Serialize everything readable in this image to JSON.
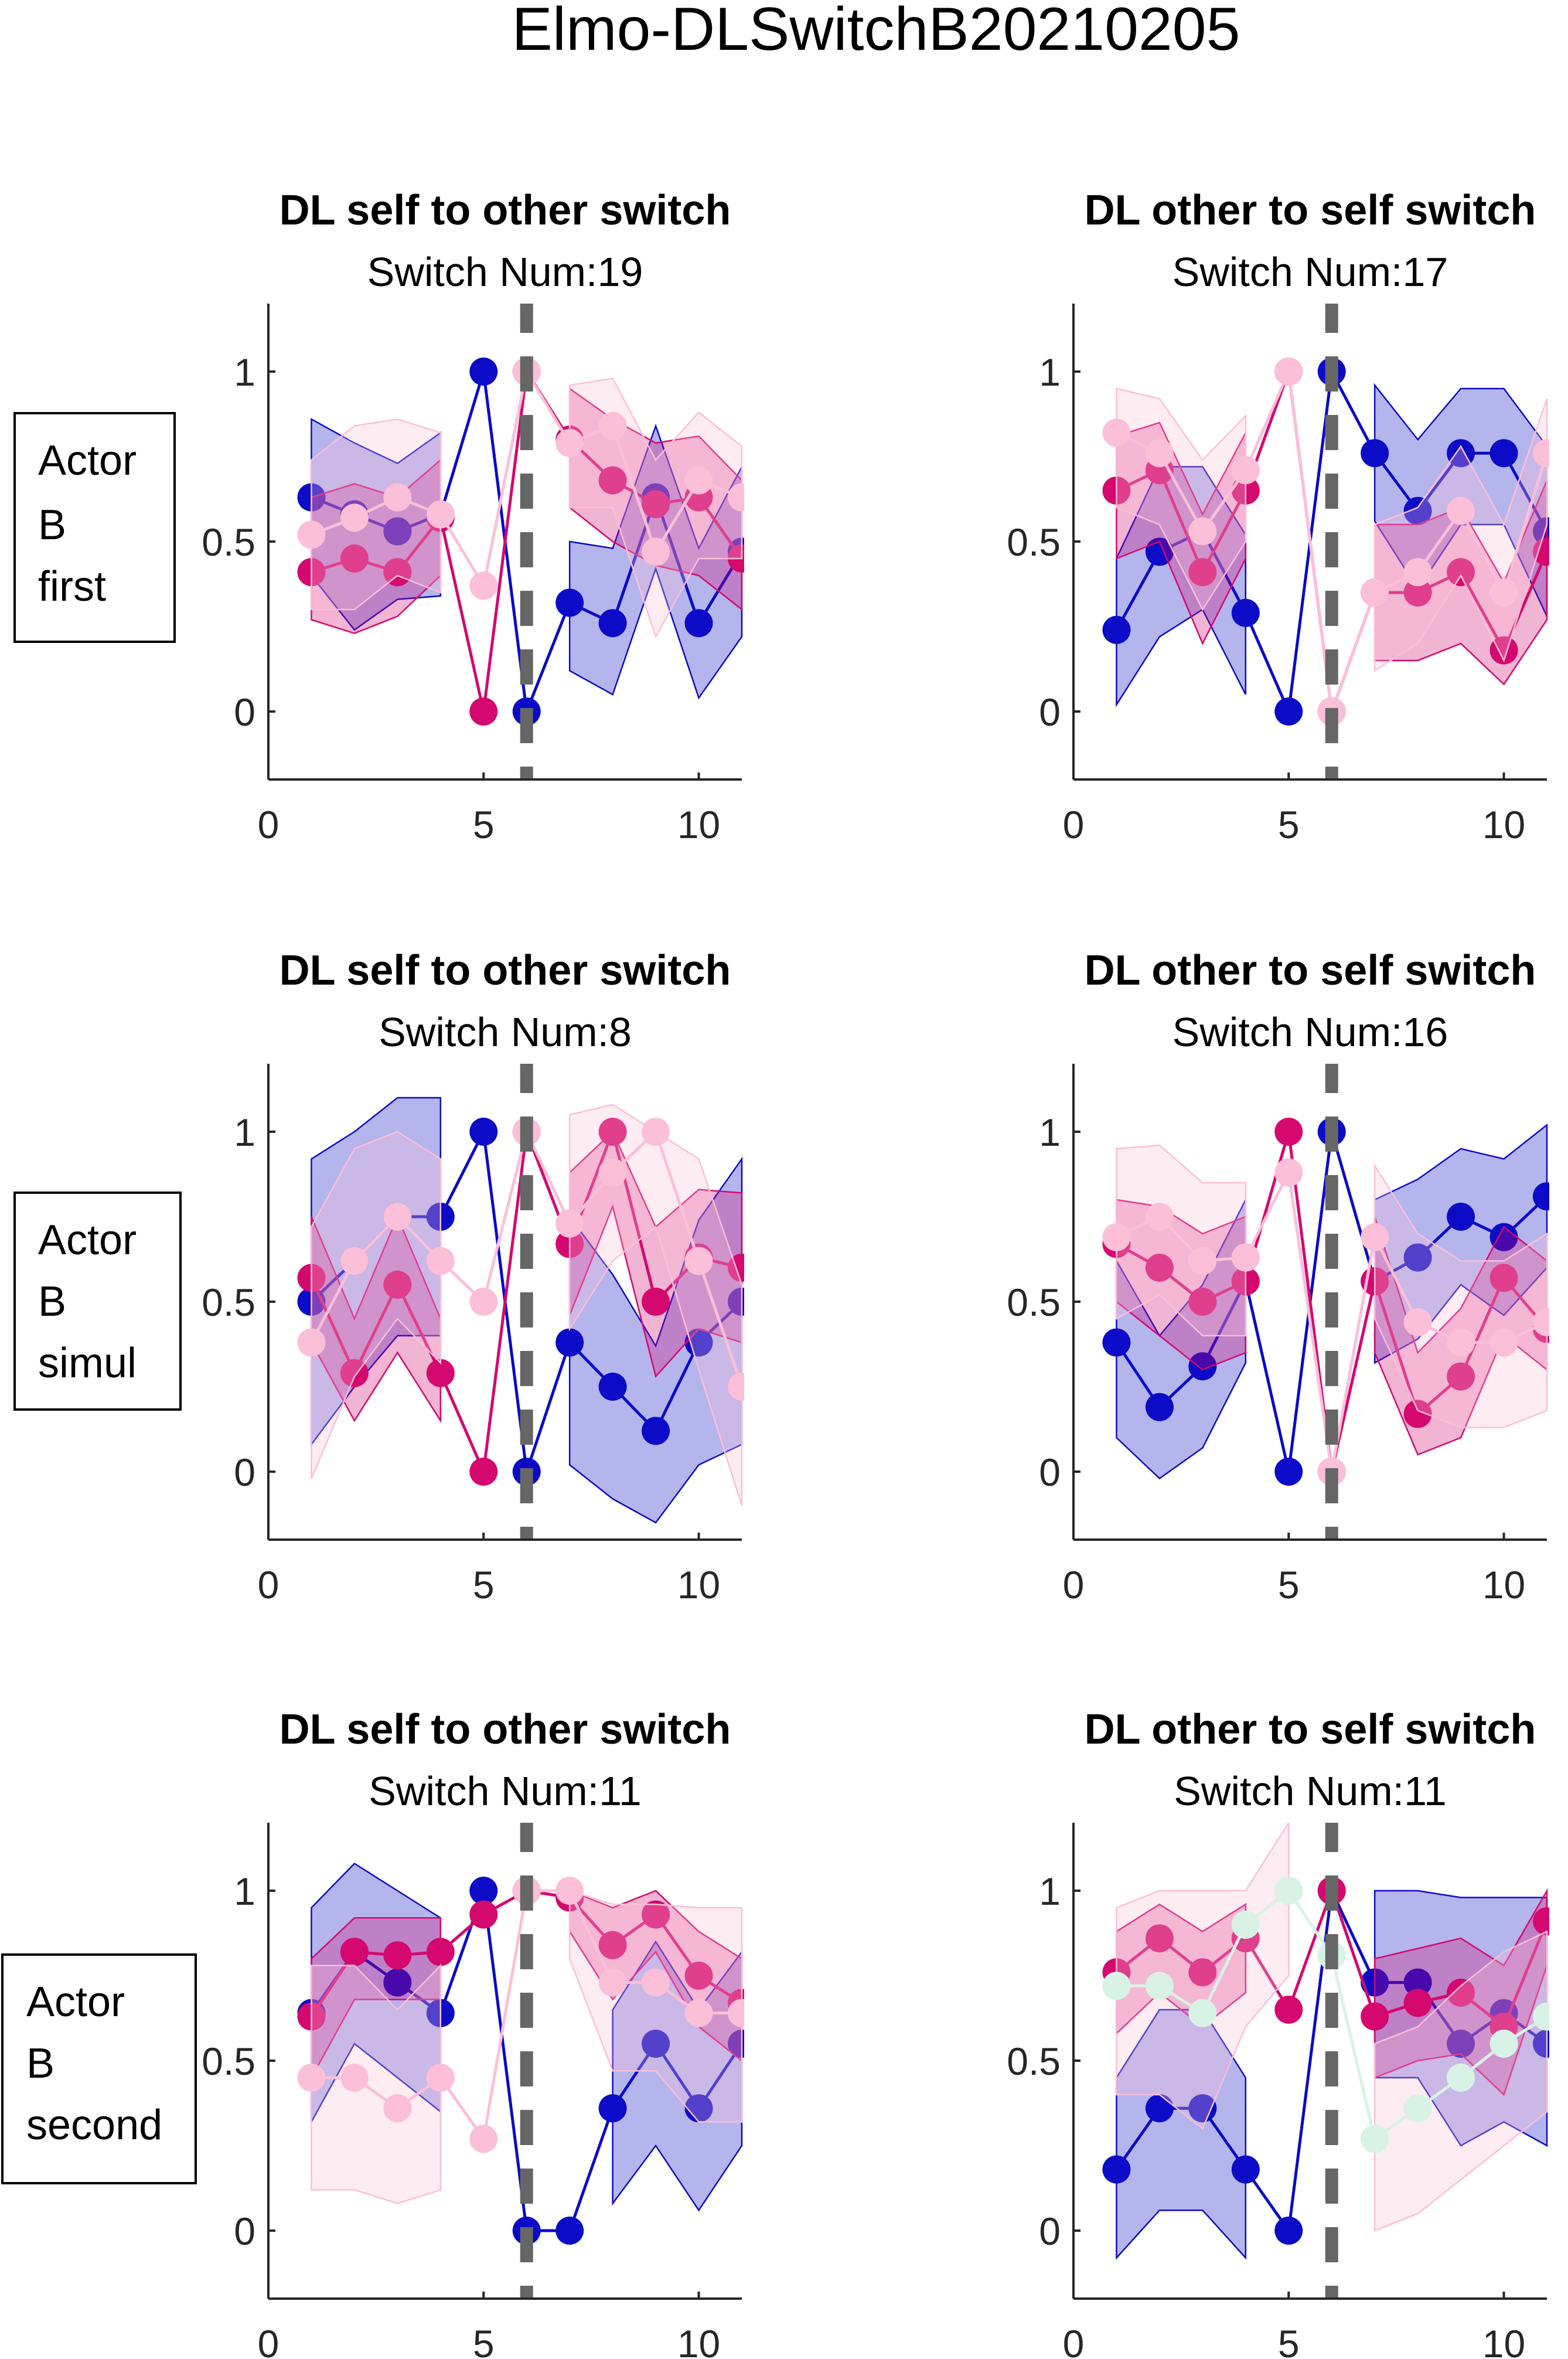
{
  "figure_title": "Elmo-DLSwitchB20210205",
  "row_labels": [
    [
      "Actor",
      "B",
      "first"
    ],
    [
      "Actor",
      "B",
      "simul"
    ],
    [
      "Actor",
      "B",
      "second"
    ]
  ],
  "chart_data": [
    {
      "type": "line",
      "title": "DL self to other switch",
      "subtitle": "Switch Num:19",
      "xlim": [
        0,
        11
      ],
      "ylim": [
        -0.2,
        1.2
      ],
      "xticks": [
        0,
        5,
        10
      ],
      "yticks": [
        0,
        0.5,
        1
      ],
      "xticklabels": [
        "0",
        "5",
        "10"
      ],
      "yticklabels": [
        "0",
        "0.5",
        "1"
      ],
      "switch_x": 6,
      "x": [
        1,
        2,
        3,
        4,
        5,
        6,
        7,
        8,
        9,
        10,
        11
      ],
      "series": [
        {
          "color": "#0b0bc8",
          "values": [
            0.63,
            0.58,
            0.53,
            0.58,
            1,
            0,
            0.32,
            0.26,
            0.63,
            0.26,
            0.47
          ],
          "upper": [
            0.86,
            0.79,
            0.73,
            0.82,
            null,
            null,
            0.5,
            0.48,
            0.84,
            0.48,
            0.72
          ],
          "lower": [
            0.4,
            0.24,
            0.33,
            0.34,
            null,
            null,
            0.12,
            0.05,
            0.42,
            0.04,
            0.22
          ]
        },
        {
          "color": "#d4086e",
          "values": [
            0.41,
            0.45,
            0.41,
            0.57,
            0,
            1,
            0.8,
            0.68,
            0.61,
            0.63,
            0.45
          ],
          "upper": [
            0.63,
            0.67,
            0.63,
            0.74,
            null,
            null,
            0.95,
            0.86,
            0.79,
            0.81,
            0.68
          ],
          "lower": [
            0.27,
            0.23,
            0.28,
            0.4,
            null,
            null,
            0.6,
            0.5,
            0.43,
            0.4,
            0.3
          ]
        },
        {
          "color": "#fbbfd8",
          "values": [
            0.52,
            0.57,
            0.63,
            0.58,
            0.37,
            1,
            0.79,
            0.84,
            0.47,
            0.68,
            0.63
          ],
          "upper": [
            0.74,
            0.84,
            0.86,
            0.82,
            null,
            null,
            0.96,
            0.98,
            0.74,
            0.88,
            0.78
          ],
          "lower": [
            0.3,
            0.3,
            0.4,
            0.35,
            null,
            null,
            0.6,
            0.6,
            0.22,
            0.45,
            0.45
          ]
        }
      ]
    },
    {
      "type": "line",
      "title": "DL other to self switch",
      "subtitle": "Switch Num:17",
      "xlim": [
        0,
        11
      ],
      "ylim": [
        -0.2,
        1.2
      ],
      "xticks": [
        0,
        5,
        10
      ],
      "yticks": [
        0,
        0.5,
        1
      ],
      "xticklabels": [
        "0",
        "5",
        "10"
      ],
      "yticklabels": [
        "0",
        "0.5",
        "1"
      ],
      "switch_x": 6,
      "x": [
        1,
        2,
        3,
        4,
        5,
        6,
        7,
        8,
        9,
        10,
        11
      ],
      "series": [
        {
          "color": "#0b0bc8",
          "values": [
            0.24,
            0.47,
            0.53,
            0.29,
            0,
            1,
            0.76,
            0.59,
            0.76,
            0.76,
            0.53
          ],
          "upper": [
            0.45,
            0.72,
            0.72,
            0.52,
            null,
            null,
            0.96,
            0.8,
            0.95,
            0.95,
            0.78
          ],
          "lower": [
            0.02,
            0.22,
            0.3,
            0.05,
            null,
            null,
            0.56,
            0.36,
            0.55,
            0.55,
            0.28
          ]
        },
        {
          "color": "#d4086e",
          "values": [
            0.65,
            0.71,
            0.41,
            0.65,
            1,
            0,
            0.35,
            0.35,
            0.41,
            0.18,
            0.47
          ],
          "upper": [
            0.81,
            0.85,
            0.58,
            0.82,
            null,
            null,
            0.55,
            0.55,
            0.6,
            0.38,
            0.68
          ],
          "lower": [
            0.45,
            0.5,
            0.2,
            0.45,
            null,
            null,
            0.15,
            0.15,
            0.2,
            0.08,
            0.27
          ]
        },
        {
          "color": "#fbbfd8",
          "values": [
            0.82,
            0.76,
            0.53,
            0.71,
            1,
            0,
            0.35,
            0.41,
            0.59,
            0.35,
            0.76
          ],
          "upper": [
            0.95,
            0.92,
            0.74,
            0.87,
            null,
            null,
            0.55,
            0.6,
            0.78,
            0.55,
            0.92
          ],
          "lower": [
            0.6,
            0.55,
            0.3,
            0.5,
            null,
            null,
            0.12,
            0.2,
            0.4,
            0.15,
            0.55
          ]
        }
      ]
    },
    {
      "type": "line",
      "title": "DL self to other switch",
      "subtitle": "Switch Num:8",
      "xlim": [
        0,
        11
      ],
      "ylim": [
        -0.2,
        1.2
      ],
      "xticks": [
        0,
        5,
        10
      ],
      "yticks": [
        0,
        0.5,
        1
      ],
      "xticklabels": [
        "0",
        "5",
        "10"
      ],
      "yticklabels": [
        "0",
        "0.5",
        "1"
      ],
      "switch_x": 6,
      "x": [
        1,
        2,
        3,
        4,
        5,
        6,
        7,
        8,
        9,
        10,
        11
      ],
      "series": [
        {
          "color": "#0b0bc8",
          "values": [
            0.5,
            0.62,
            0.75,
            0.75,
            1,
            0,
            0.38,
            0.25,
            0.12,
            0.38,
            0.5
          ],
          "upper": [
            0.92,
            1.0,
            1.1,
            1.1,
            null,
            null,
            0.75,
            0.58,
            0.37,
            0.74,
            0.92
          ],
          "lower": [
            0.08,
            0.25,
            0.4,
            0.4,
            null,
            null,
            0.02,
            -0.08,
            -0.15,
            0.02,
            0.08
          ]
        },
        {
          "color": "#d4086e",
          "values": [
            0.57,
            0.29,
            0.55,
            0.29,
            0,
            1,
            0.67,
            1,
            0.5,
            0.63,
            0.6
          ],
          "upper": [
            0.75,
            0.45,
            0.75,
            0.45,
            null,
            null,
            0.88,
            1.0,
            0.72,
            0.83,
            0.82
          ],
          "lower": [
            0.38,
            0.15,
            0.35,
            0.15,
            null,
            null,
            0.46,
            0.78,
            0.28,
            0.42,
            0.38
          ]
        },
        {
          "color": "#fbbfd8",
          "values": [
            0.38,
            0.62,
            0.75,
            0.62,
            0.5,
            1,
            0.73,
            0.88,
            1,
            0.62,
            0.25
          ],
          "upper": [
            0.72,
            0.95,
            1.0,
            0.92,
            null,
            null,
            1.05,
            1.08,
            1.0,
            0.92,
            0.55
          ],
          "lower": [
            -0.02,
            0.28,
            0.45,
            0.32,
            null,
            null,
            0.42,
            0.62,
            0.72,
            0.3,
            -0.1
          ]
        }
      ]
    },
    {
      "type": "line",
      "title": "DL other to self switch",
      "subtitle": "Switch Num:16",
      "xlim": [
        0,
        11
      ],
      "ylim": [
        -0.2,
        1.2
      ],
      "xticks": [
        0,
        5,
        10
      ],
      "yticks": [
        0,
        0.5,
        1
      ],
      "xticklabels": [
        "0",
        "5",
        "10"
      ],
      "yticklabels": [
        "0",
        "0.5",
        "1"
      ],
      "switch_x": 6,
      "x": [
        1,
        2,
        3,
        4,
        5,
        6,
        7,
        8,
        9,
        10,
        11
      ],
      "series": [
        {
          "color": "#0b0bc8",
          "values": [
            0.38,
            0.19,
            0.31,
            0.56,
            0,
            1,
            0.56,
            0.63,
            0.75,
            0.69,
            0.81
          ],
          "upper": [
            0.62,
            0.4,
            0.55,
            0.8,
            null,
            null,
            0.8,
            0.86,
            0.95,
            0.92,
            1.02
          ],
          "lower": [
            0.1,
            -0.02,
            0.07,
            0.32,
            null,
            null,
            0.32,
            0.39,
            0.55,
            0.46,
            0.6
          ]
        },
        {
          "color": "#d4086e",
          "values": [
            0.67,
            0.6,
            0.5,
            0.56,
            1,
            0,
            0.56,
            0.17,
            0.28,
            0.57,
            0.42
          ],
          "upper": [
            0.8,
            0.78,
            0.7,
            0.75,
            null,
            null,
            0.75,
            0.35,
            0.48,
            0.72,
            0.62
          ],
          "lower": [
            0.5,
            0.4,
            0.3,
            0.35,
            null,
            null,
            0.35,
            0.05,
            0.1,
            0.4,
            0.3
          ]
        },
        {
          "color": "#fbbfd8",
          "values": [
            0.69,
            0.75,
            0.62,
            0.63,
            0.88,
            0,
            0.69,
            0.44,
            0.38,
            0.38,
            0.44
          ],
          "upper": [
            0.95,
            0.96,
            0.85,
            0.85,
            null,
            null,
            0.9,
            0.7,
            0.62,
            0.62,
            0.7
          ],
          "lower": [
            0.45,
            0.52,
            0.4,
            0.4,
            null,
            null,
            0.45,
            0.18,
            0.13,
            0.13,
            0.18
          ]
        }
      ]
    },
    {
      "type": "line",
      "title": "DL self to other switch",
      "subtitle": "Switch Num:11",
      "xlim": [
        0,
        11
      ],
      "ylim": [
        -0.2,
        1.2
      ],
      "xticks": [
        0,
        5,
        10
      ],
      "yticks": [
        0,
        0.5,
        1
      ],
      "xticklabels": [
        "0",
        "5",
        "10"
      ],
      "yticklabels": [
        "0",
        "0.5",
        "1"
      ],
      "switch_x": 6,
      "x": [
        1,
        2,
        3,
        4,
        5,
        6,
        7,
        8,
        9,
        10,
        11
      ],
      "series": [
        {
          "color": "#0b0bc8",
          "values": [
            0.64,
            0.82,
            0.73,
            0.64,
            1,
            0,
            0,
            0.36,
            0.55,
            0.36,
            0.55
          ],
          "upper": [
            0.95,
            1.08,
            1.0,
            0.92,
            null,
            null,
            null,
            0.65,
            0.85,
            0.65,
            0.82
          ],
          "lower": [
            0.32,
            0.55,
            0.45,
            0.35,
            null,
            null,
            null,
            0.08,
            0.25,
            0.06,
            0.25
          ]
        },
        {
          "color": "#d4086e",
          "values": [
            0.63,
            0.82,
            0.81,
            0.82,
            0.93,
            1,
            0.98,
            0.84,
            0.93,
            0.75,
            0.67
          ],
          "upper": [
            0.8,
            0.92,
            0.92,
            0.92,
            null,
            null,
            1.0,
            0.95,
            1.0,
            0.88,
            0.8
          ],
          "lower": [
            0.45,
            0.68,
            0.68,
            0.68,
            null,
            null,
            0.88,
            0.68,
            0.82,
            0.6,
            0.5
          ]
        },
        {
          "color": "#fbbfd8",
          "values": [
            0.45,
            0.45,
            0.36,
            0.45,
            0.27,
            1,
            1,
            0.73,
            0.73,
            0.64,
            0.64
          ],
          "upper": [
            0.78,
            0.78,
            0.65,
            0.78,
            null,
            null,
            1.0,
            0.96,
            0.96,
            0.95,
            0.95
          ],
          "lower": [
            0.12,
            0.12,
            0.08,
            0.12,
            null,
            null,
            0.8,
            0.47,
            0.47,
            0.32,
            0.32
          ]
        }
      ]
    },
    {
      "type": "line",
      "title": "DL other to self switch",
      "subtitle": "Switch Num:11",
      "xlim": [
        0,
        11
      ],
      "ylim": [
        -0.2,
        1.2
      ],
      "xticks": [
        0,
        5,
        10
      ],
      "yticks": [
        0,
        0.5,
        1
      ],
      "xticklabels": [
        "0",
        "5",
        "10"
      ],
      "yticklabels": [
        "0",
        "0.5",
        "1"
      ],
      "switch_x": 6,
      "x": [
        1,
        2,
        3,
        4,
        5,
        6,
        7,
        8,
        9,
        10,
        11
      ],
      "series": [
        {
          "color": "#0b0bc8",
          "values": [
            0.18,
            0.36,
            0.36,
            0.18,
            0,
            1,
            0.73,
            0.73,
            0.55,
            0.64,
            0.55
          ],
          "upper": [
            0.45,
            0.65,
            0.65,
            0.45,
            null,
            null,
            1.0,
            1.0,
            0.98,
            0.98,
            0.98
          ],
          "lower": [
            -0.08,
            0.06,
            0.06,
            -0.08,
            null,
            null,
            0.45,
            0.45,
            0.25,
            0.32,
            0.25
          ]
        },
        {
          "color": "#d4086e",
          "values": [
            0.76,
            0.86,
            0.76,
            0.86,
            0.65,
            1,
            0.63,
            0.67,
            0.7,
            0.6,
            0.91
          ],
          "upper": [
            0.88,
            0.96,
            0.88,
            0.96,
            null,
            null,
            0.8,
            0.83,
            0.86,
            0.78,
            1.0
          ],
          "lower": [
            0.58,
            0.7,
            0.6,
            0.7,
            null,
            null,
            0.45,
            0.5,
            0.52,
            0.4,
            0.78
          ]
        },
        {
          "color": "#fbbfd8",
          "values": [
            0.72,
            0.72,
            0.64,
            0.9,
            1,
            0.81,
            0.27,
            0.36,
            0.45,
            0.55,
            0.63
          ],
          "upper": [
            0.95,
            1.0,
            1.0,
            1.0,
            1.2,
            null,
            0.55,
            0.6,
            0.72,
            0.82,
            0.88
          ],
          "lower": [
            0.4,
            0.4,
            0.3,
            0.6,
            0.75,
            null,
            0.0,
            0.05,
            0.15,
            0.25,
            0.35
          ]
        },
        {
          "color": "#d8f3e6",
          "values": [
            0.72,
            0.72,
            0.64,
            0.9,
            1,
            0.81,
            0.27,
            0.36,
            0.45,
            0.55,
            0.63
          ]
        }
      ]
    }
  ]
}
